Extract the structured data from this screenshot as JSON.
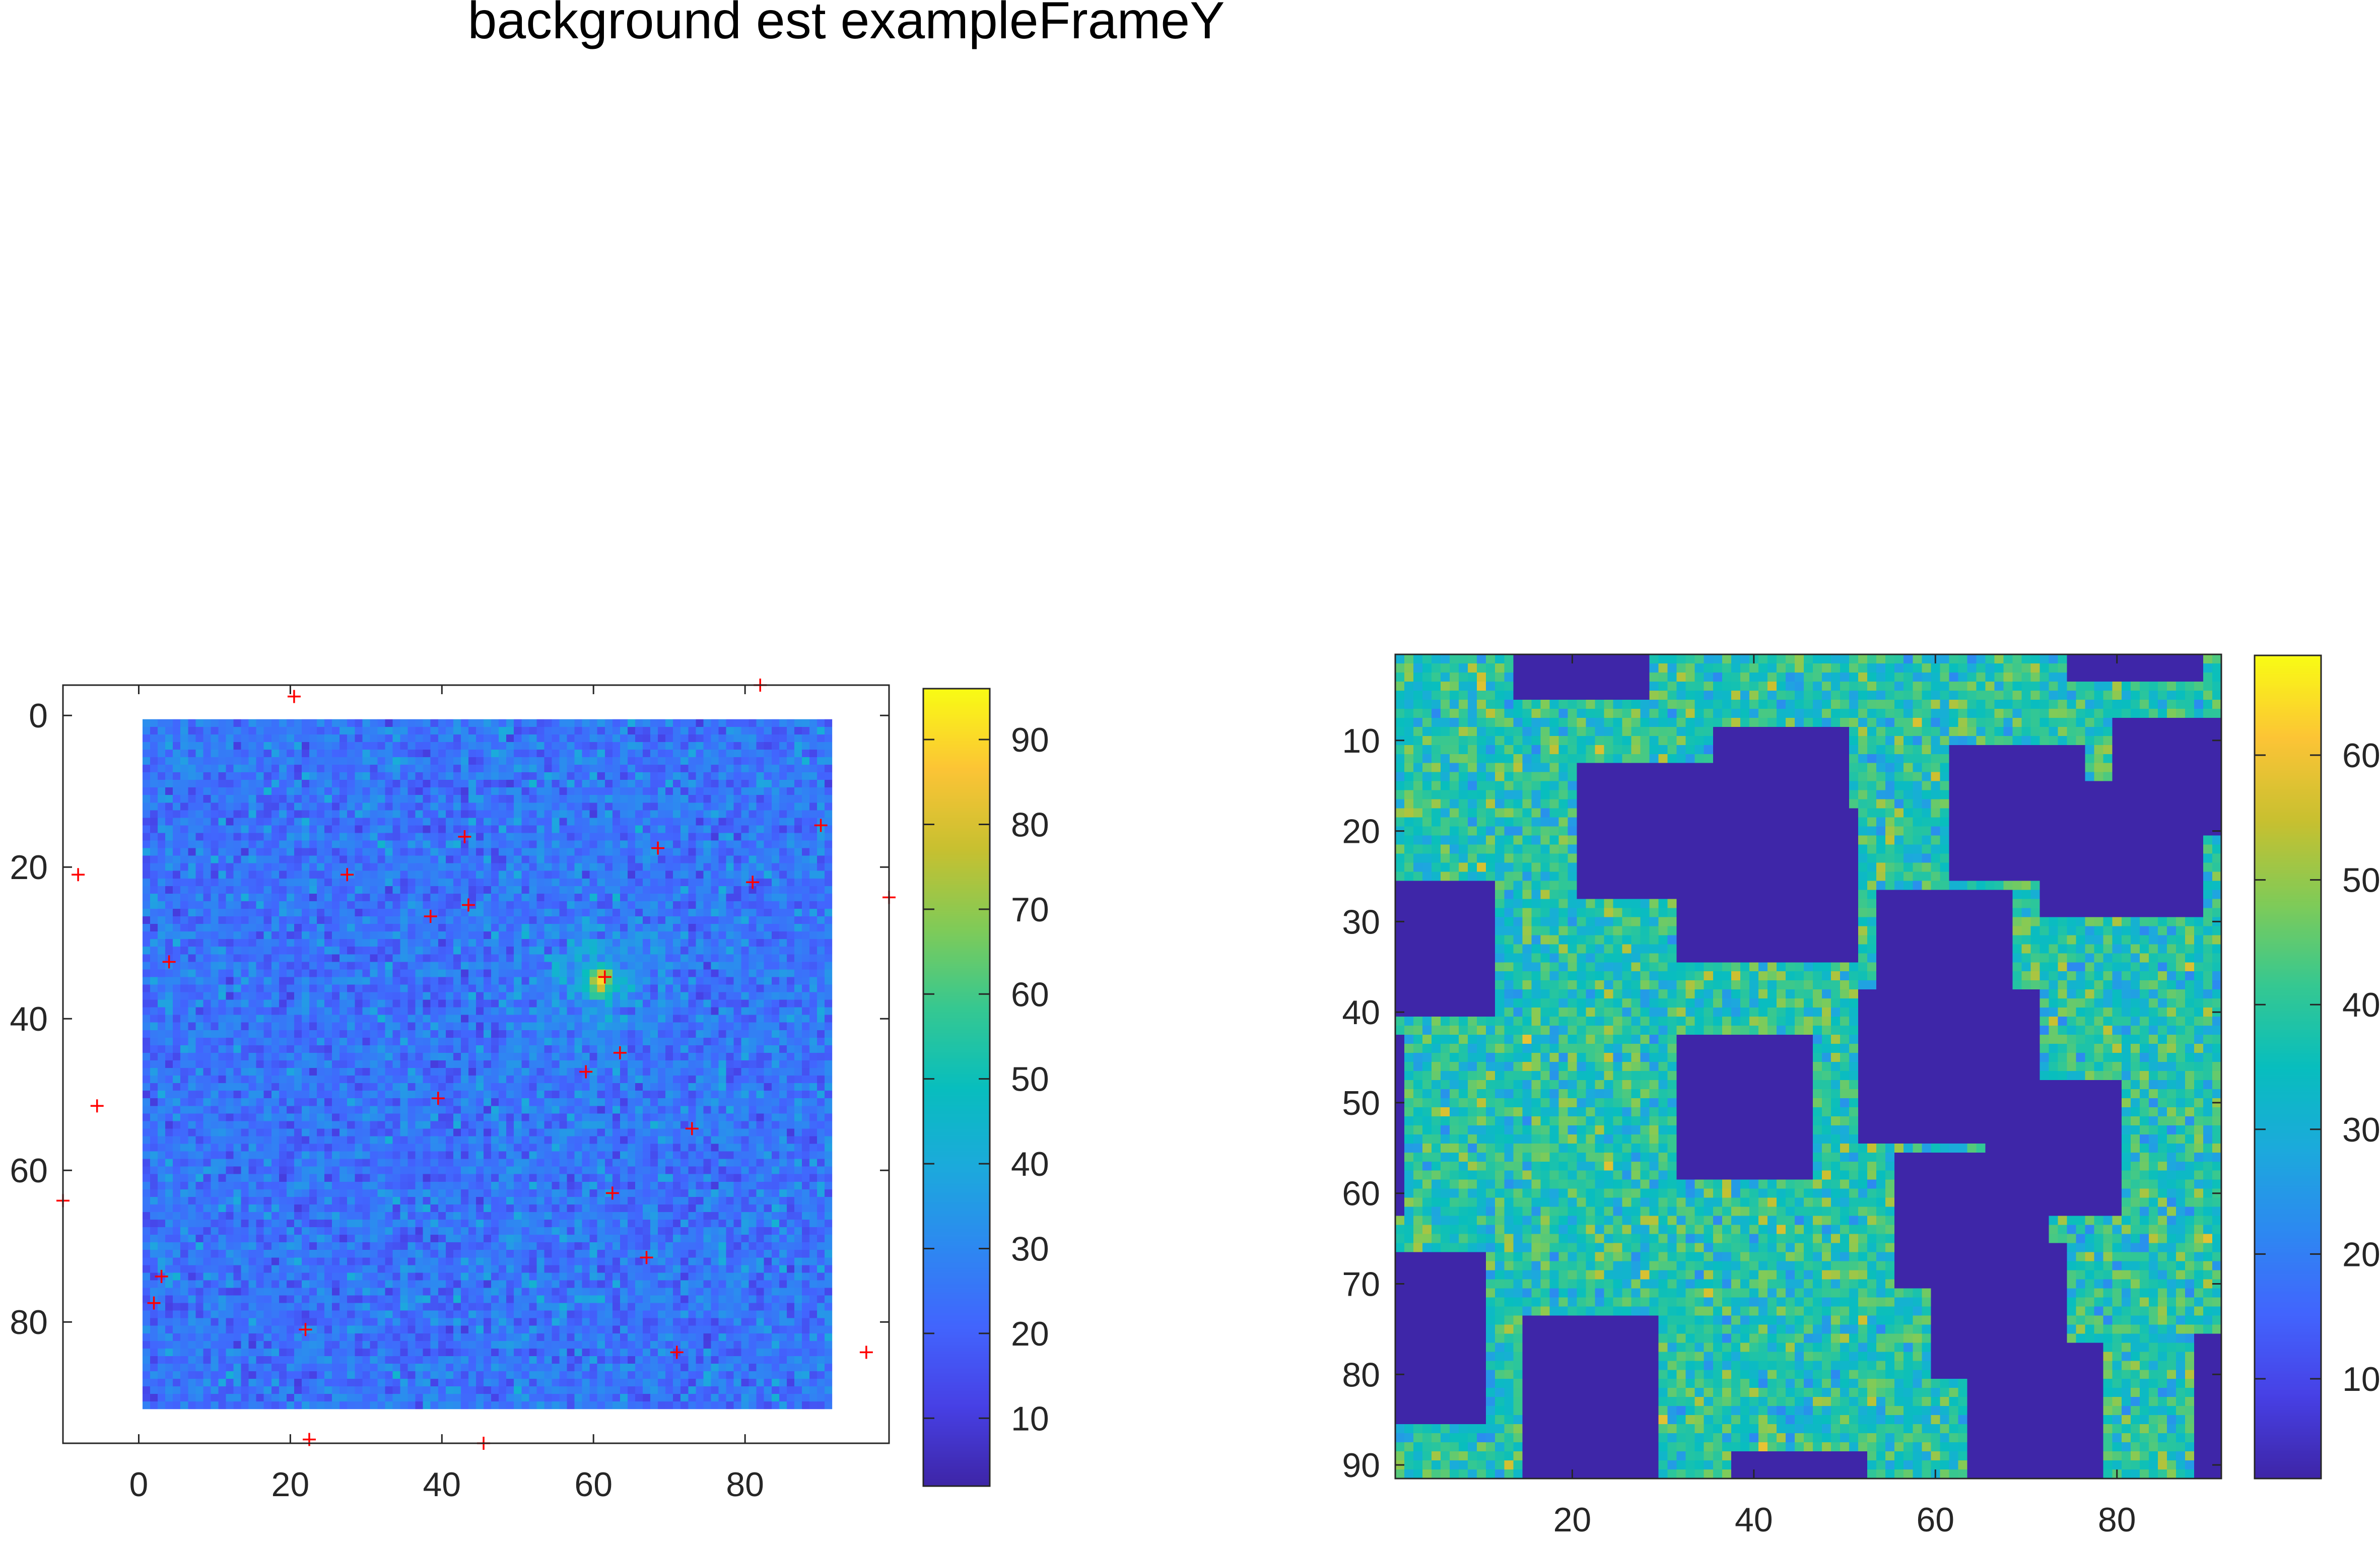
{
  "figure": {
    "title": "background est exampleFrameY"
  },
  "colors": {
    "colormap": "parula",
    "marker": "#ff0000",
    "frame": "#262626",
    "mask_fill": "#3e26a8"
  },
  "chart_data": [
    {
      "type": "heatmap",
      "title": "",
      "xlabel": "",
      "ylabel": "",
      "grid_size": 91,
      "xlim": [
        -10,
        99
      ],
      "ylim": [
        -4,
        96
      ],
      "y_reversed": true,
      "x_ticks": [
        "0",
        "20",
        "40",
        "60",
        "80"
      ],
      "x_tick_values": [
        0,
        20,
        40,
        60,
        80
      ],
      "y_ticks": [
        "0",
        "20",
        "40",
        "60",
        "80"
      ],
      "y_tick_values": [
        0,
        20,
        40,
        60,
        80
      ],
      "colorbar": {
        "limits": [
          2,
          96
        ],
        "ticks": [
          "10",
          "20",
          "30",
          "40",
          "50",
          "60",
          "70",
          "80",
          "90"
        ],
        "tick_values": [
          10,
          20,
          30,
          40,
          50,
          60,
          70,
          80,
          90
        ]
      },
      "pixel_value_mean": 25,
      "pixel_value_range": [
        10,
        60
      ],
      "hotspot": {
        "x": 61,
        "y": 35,
        "value": 85
      },
      "markers": {
        "symbol": "+",
        "points": [
          [
            20.5,
            -2.5
          ],
          [
            82,
            -4
          ],
          [
            -8,
            21
          ],
          [
            -5.5,
            51.5
          ],
          [
            -10,
            64
          ],
          [
            4,
            32.5
          ],
          [
            3,
            74
          ],
          [
            2,
            77.5
          ],
          [
            22,
            81
          ],
          [
            22.5,
            95.5
          ],
          [
            45.5,
            96
          ],
          [
            27.5,
            21
          ],
          [
            38.5,
            26.5
          ],
          [
            43,
            16
          ],
          [
            43.5,
            25
          ],
          [
            39.5,
            50.5
          ],
          [
            61.5,
            34.5
          ],
          [
            59,
            47
          ],
          [
            63.5,
            44.5
          ],
          [
            62.5,
            63
          ],
          [
            68.5,
            17.5
          ],
          [
            73,
            54.5
          ],
          [
            81,
            22
          ],
          [
            90,
            14.5
          ],
          [
            99,
            24
          ],
          [
            67,
            71.5
          ],
          [
            71,
            84
          ],
          [
            96,
            84
          ]
        ]
      }
    },
    {
      "type": "heatmap",
      "title": "",
      "xlabel": "",
      "ylabel": "",
      "grid_size": 91,
      "xlim": [
        0.5,
        91.5
      ],
      "ylim": [
        0.5,
        91.5
      ],
      "y_reversed": true,
      "x_ticks": [
        "20",
        "40",
        "60",
        "80"
      ],
      "x_tick_values": [
        20,
        40,
        60,
        80
      ],
      "y_ticks": [
        "10",
        "20",
        "30",
        "40",
        "50",
        "60",
        "70",
        "80",
        "90"
      ],
      "y_tick_values": [
        10,
        20,
        30,
        40,
        50,
        60,
        70,
        80,
        90
      ],
      "colorbar": {
        "limits": [
          2,
          68
        ],
        "ticks": [
          "10",
          "20",
          "30",
          "40",
          "50",
          "60"
        ],
        "tick_values": [
          10,
          20,
          30,
          40,
          50,
          60
        ]
      },
      "pixel_value_mean": 38,
      "pixel_value_range": [
        22,
        66
      ],
      "mask_value": 2,
      "masked_rects": [
        {
          "x": [
            14,
            28
          ],
          "y": [
            1,
            5
          ]
        },
        {
          "x": [
            75,
            89
          ],
          "y": [
            1,
            3
          ]
        },
        {
          "x": [
            36,
            50
          ],
          "y": [
            9,
            18
          ]
        },
        {
          "x": [
            21,
            35
          ],
          "y": [
            13,
            27
          ]
        },
        {
          "x": [
            32,
            51
          ],
          "y": [
            18,
            34
          ]
        },
        {
          "x": [
            62,
            76
          ],
          "y": [
            11,
            25
          ]
        },
        {
          "x": [
            72,
            89
          ],
          "y": [
            15,
            29
          ]
        },
        {
          "x": [
            80,
            91
          ],
          "y": [
            8,
            20
          ]
        },
        {
          "x": [
            1,
            11
          ],
          "y": [
            26,
            40
          ]
        },
        {
          "x": [
            54,
            68
          ],
          "y": [
            27,
            44
          ]
        },
        {
          "x": [
            52,
            71
          ],
          "y": [
            38,
            54
          ]
        },
        {
          "x": [
            32,
            46
          ],
          "y": [
            43,
            58
          ]
        },
        {
          "x": [
            66,
            80
          ],
          "y": [
            48,
            62
          ]
        },
        {
          "x": [
            56,
            72
          ],
          "y": [
            56,
            70
          ]
        },
        {
          "x": [
            60,
            74
          ],
          "y": [
            66,
            80
          ]
        },
        {
          "x": [
            64,
            78
          ],
          "y": [
            77,
            91
          ]
        },
        {
          "x": [
            1,
            10
          ],
          "y": [
            67,
            85
          ]
        },
        {
          "x": [
            15,
            29
          ],
          "y": [
            74,
            91
          ]
        },
        {
          "x": [
            38,
            52
          ],
          "y": [
            89,
            91
          ]
        },
        {
          "x": [
            89,
            91
          ],
          "y": [
            76,
            91
          ]
        },
        {
          "x": [
            1,
            1
          ],
          "y": [
            43,
            62
          ]
        }
      ]
    }
  ]
}
